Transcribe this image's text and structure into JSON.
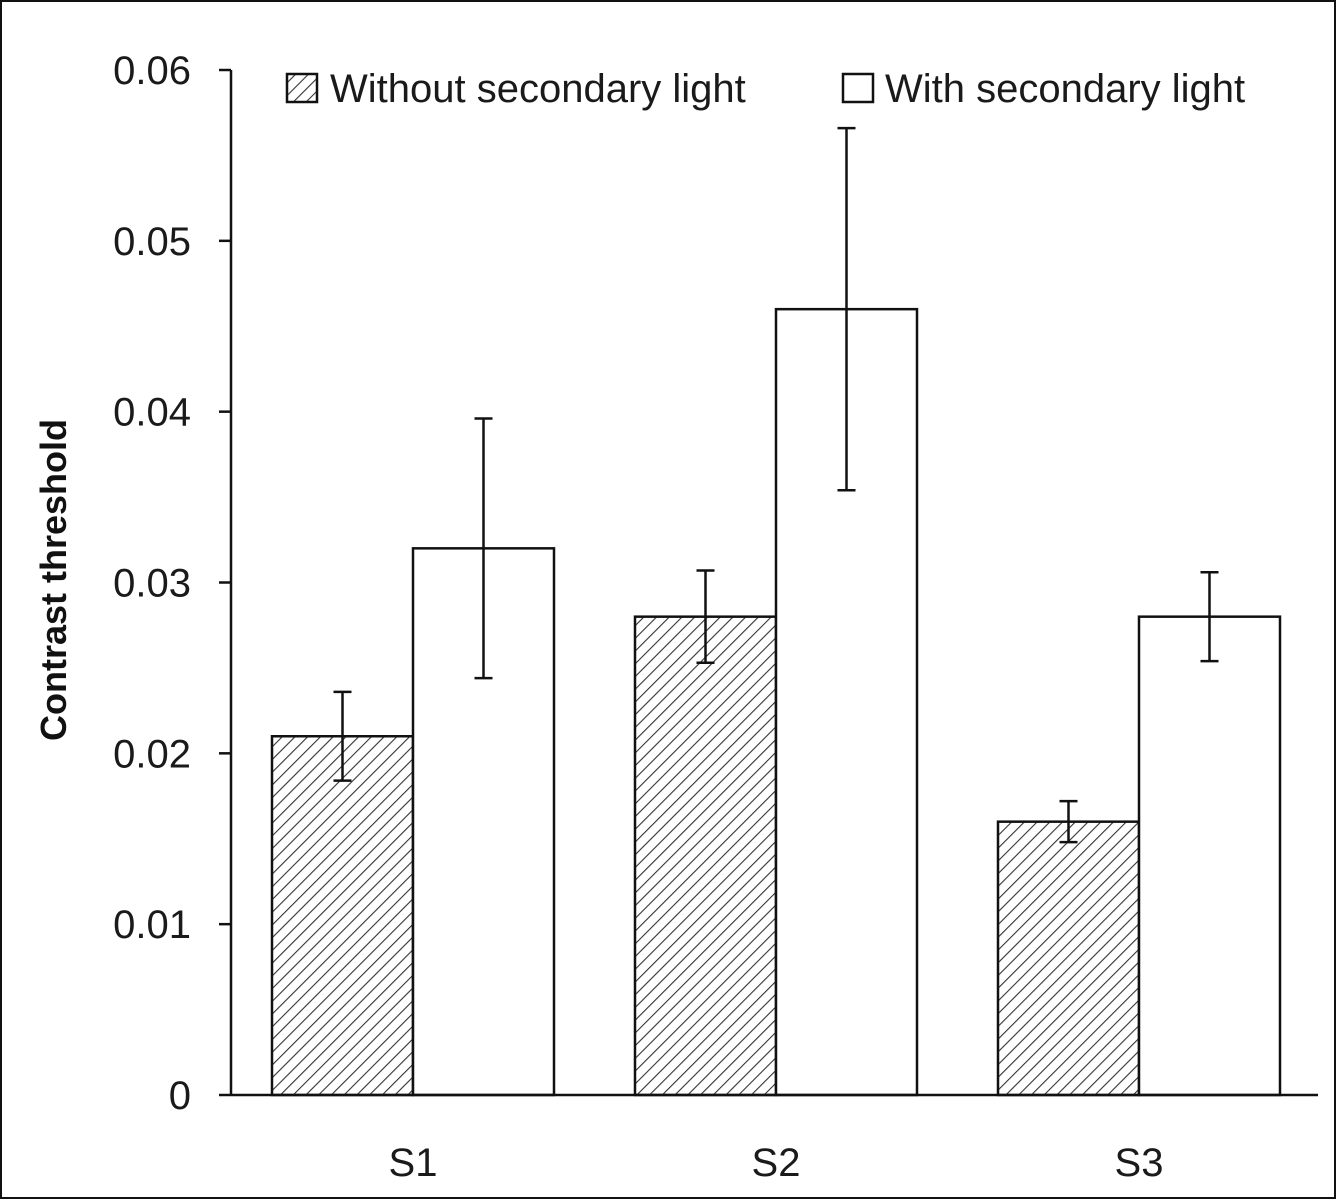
{
  "chart_data": {
    "type": "bar",
    "title": "",
    "xlabel": "",
    "ylabel": "Contrast threshold",
    "ylim": [
      0,
      0.06
    ],
    "yticks": [
      0,
      0.01,
      0.02,
      0.03,
      0.04,
      0.05,
      0.06
    ],
    "ytick_labels": [
      "0",
      "0.01",
      "0.02",
      "0.03",
      "0.04",
      "0.05",
      "0.06"
    ],
    "categories": [
      "S1",
      "S2",
      "S3"
    ],
    "series": [
      {
        "name": "Without secondary light",
        "pattern": "hatched",
        "values": [
          0.021,
          0.028,
          0.016
        ],
        "errors": [
          0.0026,
          0.0027,
          0.0012
        ]
      },
      {
        "name": "With secondary light",
        "pattern": "open",
        "values": [
          0.032,
          0.046,
          0.028
        ],
        "errors": [
          0.0076,
          0.0106,
          0.0026
        ]
      }
    ],
    "legend_position": "top",
    "grid": false,
    "colors": {
      "stroke": "#111111",
      "fill_open": "#ffffff",
      "hatch": "#333333"
    }
  }
}
